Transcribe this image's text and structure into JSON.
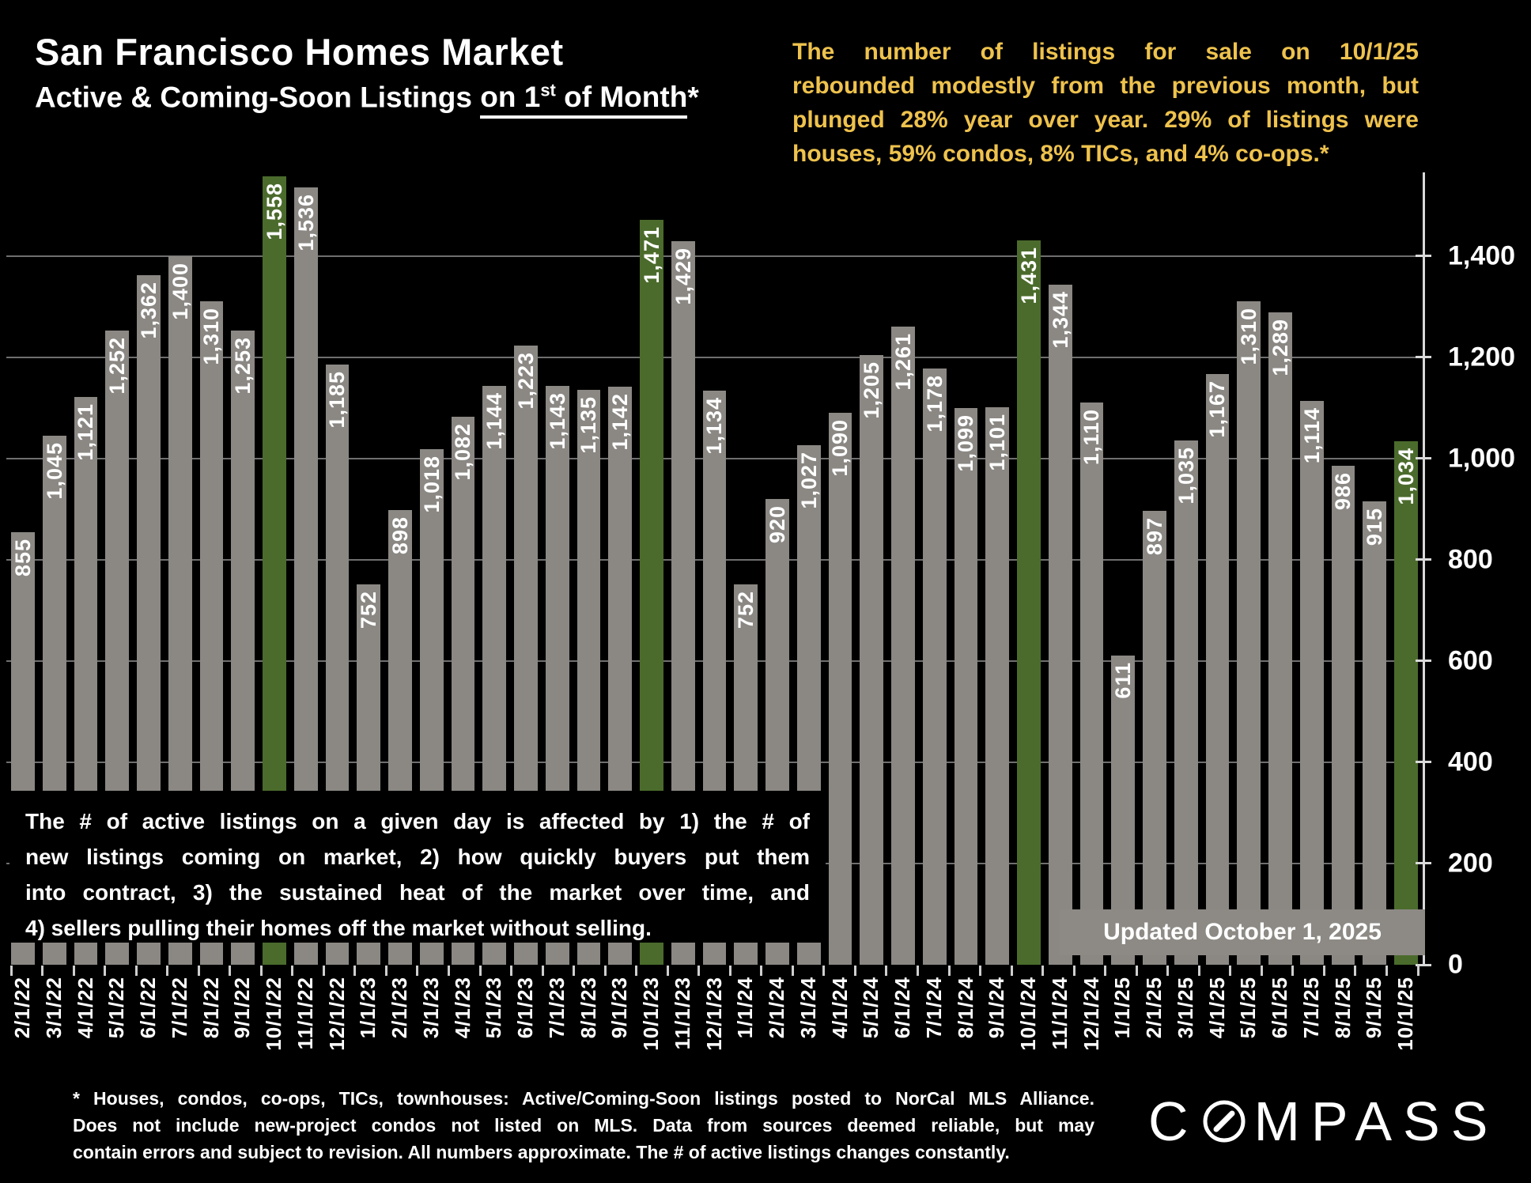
{
  "title": "San Francisco Homes Market",
  "subtitle": {
    "prefix": "Active & Coming-Soon Listings ",
    "underline_pre": "on 1",
    "sup": "st",
    "underline_post": " of Month",
    "suffix": "*"
  },
  "commentary": {
    "color": "#eec24d",
    "lines": [
      "The number of listings for sale on 10/1/25",
      "rebounded modestly from the previous month, but",
      "plunged 28% year over year. 29% of listings were",
      "houses, 59% condos, 8% TICs, and 4% co-ops.*"
    ]
  },
  "info_box": {
    "lines": [
      "The # of active listings on a given day is affected by 1) the # of",
      "new listings coming on market, 2) how quickly buyers put them",
      "into contract, 3) the sustained heat of the market over time, and",
      "4) sellers pulling their homes off the market without selling."
    ]
  },
  "updated_label": "Updated October 1, 2025",
  "footnote": {
    "lines": [
      "* Houses, condos, co-ops, TICs, townhouses: Active/Coming-Soon listings posted to NorCal MLS Alliance.",
      "Does not include new-project condos not listed on MLS. Data from sources deemed reliable, but may",
      "contain errors and subject to revision. All numbers approximate. The # of active listings changes constantly."
    ]
  },
  "logo": {
    "c": "C",
    "rest": "MPASS",
    "name": "COMPASS"
  },
  "chart_data": {
    "type": "bar",
    "title": "San Francisco Homes Market — Active & Coming-Soon Listings on 1st of Month",
    "xlabel": "",
    "ylabel": "",
    "categories": [
      "2/1/22",
      "3/1/22",
      "4/1/22",
      "5/1/22",
      "6/1/22",
      "7/1/22",
      "8/1/22",
      "9/1/22",
      "10/1/22",
      "11/1/22",
      "12/1/22",
      "1/1/23",
      "2/1/23",
      "3/1/23",
      "4/1/23",
      "5/1/23",
      "6/1/23",
      "7/1/23",
      "8/1/23",
      "9/1/23",
      "10/1/23",
      "11/1/23",
      "12/1/23",
      "1/1/24",
      "2/1/24",
      "3/1/24",
      "4/1/24",
      "5/1/24",
      "6/1/24",
      "7/1/24",
      "8/1/24",
      "9/1/24",
      "10/1/24",
      "11/1/24",
      "12/1/24",
      "1/1/25",
      "2/1/25",
      "3/1/25",
      "4/1/25",
      "5/1/25",
      "6/1/25",
      "7/1/25",
      "8/1/25",
      "9/1/25",
      "10/1/25"
    ],
    "values": [
      855,
      1045,
      1121,
      1252,
      1362,
      1400,
      1310,
      1253,
      1558,
      1536,
      1185,
      752,
      898,
      1018,
      1082,
      1144,
      1223,
      1143,
      1135,
      1142,
      1471,
      1429,
      1134,
      752,
      920,
      1027,
      1090,
      1205,
      1261,
      1178,
      1099,
      1101,
      1431,
      1344,
      1110,
      611,
      897,
      1035,
      1167,
      1310,
      1289,
      1114,
      986,
      915,
      1034
    ],
    "highlighted_categories": [
      "10/1/22",
      "10/1/23",
      "10/1/24",
      "10/1/25"
    ],
    "bar_color": "#8b8884",
    "highlight_color": "#4b6b2c",
    "value_label_color": "#ffffff",
    "value_label_rotation": "90deg-ccw-reading-bottom-to-top",
    "y_ticks": [
      0,
      200,
      400,
      600,
      800,
      1000,
      1200,
      1400
    ],
    "ylim": [
      0,
      1565
    ],
    "grid": true,
    "legend": "none",
    "background": "#000000"
  }
}
